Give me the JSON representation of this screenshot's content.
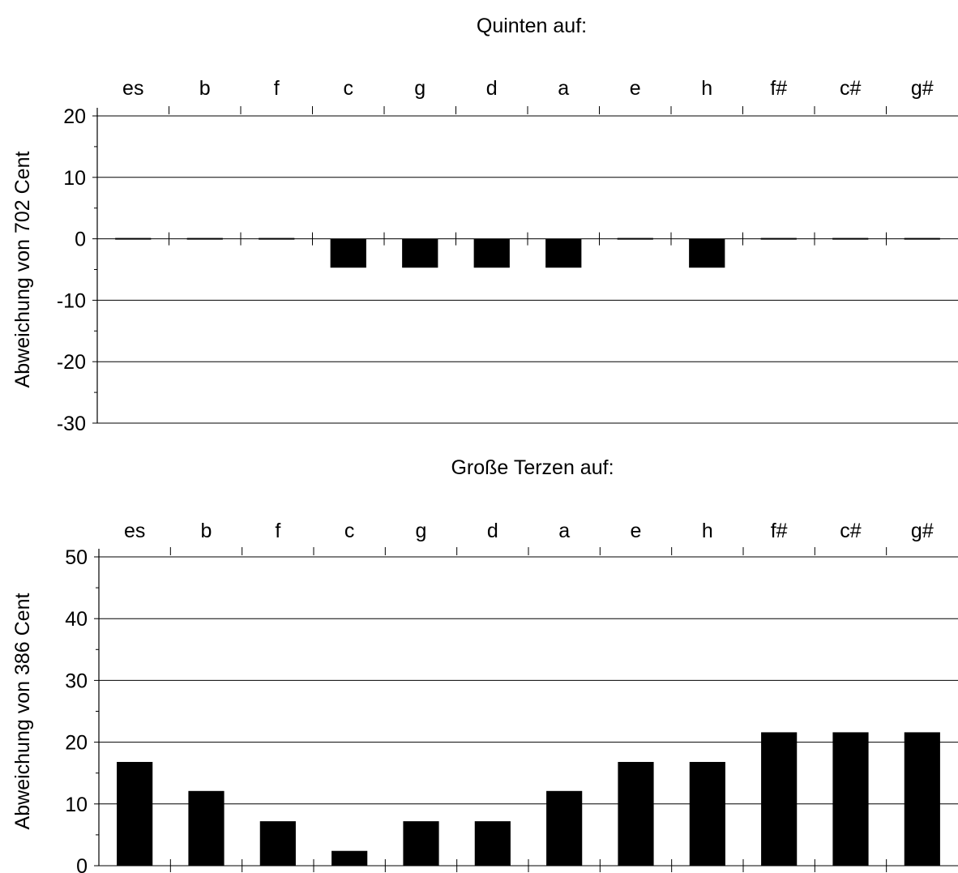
{
  "chart_data": [
    {
      "type": "bar",
      "title": "Quinten auf:",
      "ylabel": "Abweichung von 702 Cent",
      "xlabel": "",
      "categories": [
        "es",
        "b",
        "f",
        "c",
        "g",
        "d",
        "a",
        "e",
        "h",
        "f#",
        "c#",
        "g#"
      ],
      "values": [
        0,
        0,
        0,
        -4.7,
        -4.7,
        -4.7,
        -4.7,
        0,
        -4.7,
        0,
        0,
        0
      ],
      "ylim": [
        -30,
        20
      ],
      "yticks": [
        -30,
        -20,
        -10,
        0,
        10,
        20
      ],
      "grid": "horizontal",
      "bar_color": "#000000"
    },
    {
      "type": "bar",
      "title": "Große Terzen auf:",
      "ylabel": "Abweichung von 386 Cent",
      "xlabel": "",
      "categories": [
        "es",
        "b",
        "f",
        "c",
        "g",
        "d",
        "a",
        "e",
        "h",
        "f#",
        "c#",
        "g#"
      ],
      "values": [
        16.8,
        12.1,
        7.2,
        2.4,
        7.2,
        7.2,
        12.1,
        16.8,
        16.8,
        21.6,
        21.6,
        21.6
      ],
      "ylim": [
        0,
        50
      ],
      "yticks": [
        0,
        10,
        20,
        30,
        40,
        50
      ],
      "grid": "horizontal",
      "bar_color": "#000000"
    }
  ]
}
